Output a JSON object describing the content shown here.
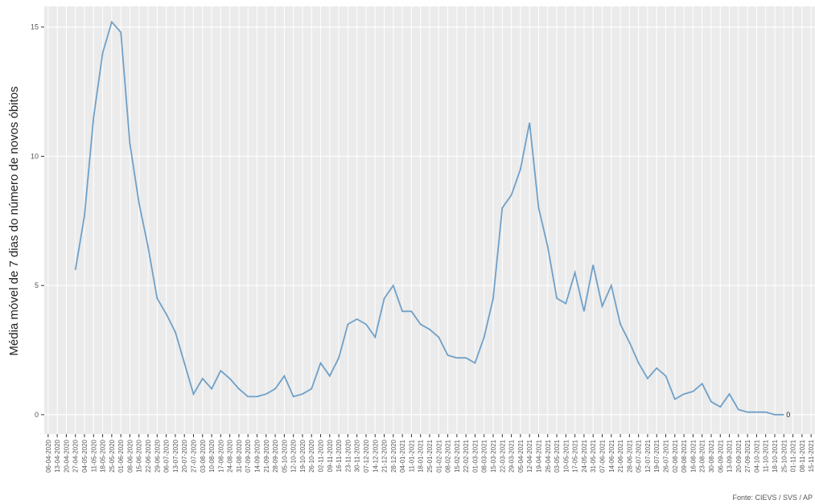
{
  "chart_data": {
    "type": "line",
    "y_label": "Média móvel de 7 dias do número de novos óbitos",
    "source": "Fonte: CIEVS / SVS / AP",
    "x": [
      "27-04-2020",
      "04-05-2020",
      "11-05-2020",
      "18-05-2020",
      "25-05-2020",
      "01-06-2020",
      "08-06-2020",
      "15-06-2020",
      "22-06-2020",
      "29-06-2020",
      "06-07-2020",
      "13-07-2020",
      "20-07-2020",
      "27-07-2020",
      "03-08-2020",
      "10-08-2020",
      "17-08-2020",
      "24-08-2020",
      "31-08-2020",
      "07-09-2020",
      "14-09-2020",
      "21-09-2020",
      "28-09-2020",
      "05-10-2020",
      "12-10-2020",
      "19-10-2020",
      "26-10-2020",
      "02-11-2020",
      "09-11-2020",
      "16-11-2020",
      "23-11-2020",
      "30-11-2020",
      "07-12-2020",
      "14-12-2020",
      "21-12-2020",
      "28-12-2020",
      "04-01-2021",
      "11-01-2021",
      "18-01-2021",
      "25-01-2021",
      "01-02-2021",
      "08-02-2021",
      "15-02-2021",
      "22-02-2021",
      "01-03-2021",
      "08-03-2021",
      "15-03-2021",
      "22-03-2021",
      "29-03-2021",
      "05-04-2021",
      "12-04-2021",
      "19-04-2021",
      "26-04-2021",
      "03-05-2021",
      "10-05-2021",
      "17-05-2021",
      "24-05-2021",
      "31-05-2021",
      "07-06-2021",
      "14-06-2021",
      "21-06-2021",
      "28-06-2021",
      "05-07-2021",
      "12-07-2021",
      "19-07-2021",
      "26-07-2021",
      "02-08-2021",
      "09-08-2021",
      "16-08-2021",
      "23-08-2021",
      "30-08-2021",
      "06-09-2021",
      "13-09-2021",
      "20-09-2021",
      "27-09-2021",
      "04-10-2021",
      "11-10-2021",
      "18-10-2021",
      "25-10-2021"
    ],
    "series": [
      {
        "color": "#6fa0c8",
        "values": [
          5.6,
          7.7,
          11.5,
          14,
          15.2,
          14.8,
          10.5,
          8.2,
          6.5,
          4.5,
          3.9,
          3.2,
          2.0,
          0.8,
          1.4,
          1.0,
          1.7,
          1.4,
          1.0,
          0.7,
          0.7,
          0.8,
          1.0,
          1.5,
          0.7,
          0.8,
          1.0,
          2.0,
          1.5,
          2.2,
          3.5,
          3.7,
          3.5,
          3.0,
          4.5,
          5.0,
          4.0,
          4.0,
          3.5,
          3.3,
          3.0,
          2.3,
          2.2,
          2.2,
          2.0,
          3.0,
          4.5,
          8.0,
          8.5,
          9.5,
          11.3,
          8.0,
          6.5,
          4.5,
          4.3,
          5.5,
          4.0,
          5.8,
          4.2,
          5.0,
          3.5,
          2.8,
          2.0,
          1.4,
          1.8,
          1.5,
          0.6,
          0.8,
          0.9,
          1.2,
          0.5,
          0.3,
          0.8,
          0.2,
          0.1,
          0.1,
          0.1,
          0,
          0
        ]
      }
    ],
    "xlim": [
      "03-04-2020",
      "18-11-2021"
    ],
    "xticks": [
      "06-04-2020",
      "13-04-2020",
      "20-04-2020",
      "27-04-2020",
      "04-05-2020",
      "11-05-2020",
      "18-05-2020",
      "25-05-2020",
      "01-06-2020",
      "08-06-2020",
      "15-06-2020",
      "22-06-2020",
      "29-06-2020",
      "06-07-2020",
      "13-07-2020",
      "20-07-2020",
      "27-07-2020",
      "03-08-2020",
      "10-08-2020",
      "17-08-2020",
      "24-08-2020",
      "31-08-2020",
      "07-09-2020",
      "14-09-2020",
      "21-09-2020",
      "28-09-2020",
      "05-10-2020",
      "12-10-2020",
      "19-10-2020",
      "26-10-2020",
      "02-11-2020",
      "09-11-2020",
      "16-11-2020",
      "23-11-2020",
      "30-11-2020",
      "07-12-2020",
      "14-12-2020",
      "21-12-2020",
      "28-12-2020",
      "04-01-2021",
      "11-01-2021",
      "18-01-2021",
      "25-01-2021",
      "01-02-2021",
      "08-02-2021",
      "15-02-2021",
      "22-02-2021",
      "01-03-2021",
      "08-03-2021",
      "15-03-2021",
      "22-03-2021",
      "29-03-2021",
      "05-04-2021",
      "12-04-2021",
      "19-04-2021",
      "26-04-2021",
      "03-05-2021",
      "10-05-2021",
      "17-05-2021",
      "24-05-2021",
      "31-05-2021",
      "07-06-2021",
      "14-06-2021",
      "21-06-2021",
      "28-06-2021",
      "05-07-2021",
      "12-07-2021",
      "19-07-2021",
      "26-07-2021",
      "02-08-2021",
      "09-08-2021",
      "16-08-2021",
      "23-08-2021",
      "30-08-2021",
      "06-09-2021",
      "13-09-2021",
      "20-09-2021",
      "27-09-2021",
      "04-10-2021",
      "11-10-2021",
      "18-10-2021",
      "25-10-2021",
      "01-11-2021",
      "08-11-2021",
      "15-11-2021"
    ],
    "ylim": [
      -0.75,
      15.8
    ],
    "yticks": [
      0,
      5,
      10,
      15
    ],
    "grid": true
  }
}
